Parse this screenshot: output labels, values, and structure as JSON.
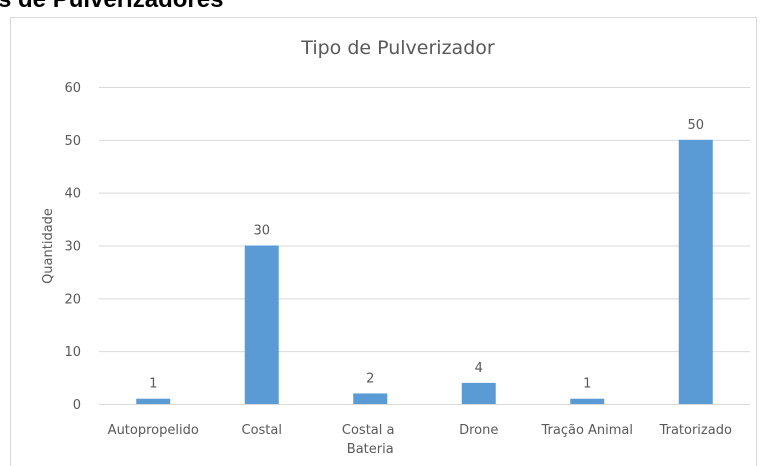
{
  "heading": "s de Pulverizadores",
  "chart_data": {
    "type": "bar",
    "title": "Tipo de Pulverizador",
    "y_label": "Quantidade",
    "categories": [
      "Autopropelido",
      "Costal",
      "Costal a Bateria",
      "Drone",
      "Tração Animal",
      "Tratorizado"
    ],
    "values": [
      1,
      30,
      2,
      4,
      1,
      50
    ],
    "color": "#5b9bd5",
    "ylim": [
      0,
      60
    ],
    "yticks": [
      0,
      10,
      20,
      30,
      40,
      50,
      60
    ],
    "grid": true,
    "data_labels": true
  }
}
